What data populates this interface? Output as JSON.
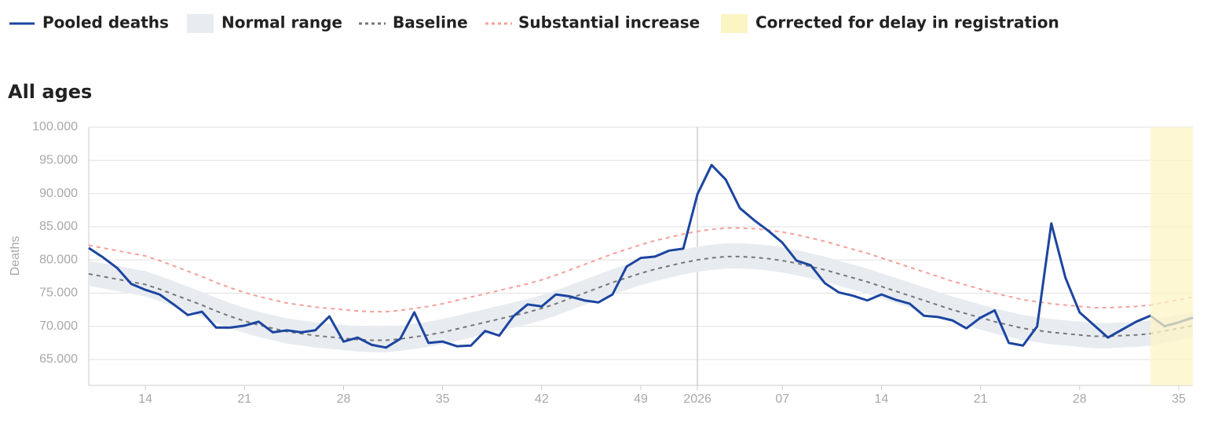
{
  "chart_data": {
    "type": "line",
    "title": "All ages",
    "y_label": "Deaths",
    "categories": [
      null,
      null,
      null,
      null,
      "14",
      null,
      null,
      null,
      null,
      null,
      null,
      "21",
      null,
      null,
      null,
      null,
      null,
      null,
      "28",
      null,
      null,
      null,
      null,
      null,
      null,
      "35",
      null,
      null,
      null,
      null,
      null,
      null,
      "42",
      null,
      null,
      null,
      null,
      null,
      null,
      "49",
      null,
      null,
      null,
      "2026",
      null,
      null,
      null,
      null,
      null,
      "07",
      null,
      null,
      null,
      null,
      null,
      null,
      "14",
      null,
      null,
      null,
      null,
      null,
      null,
      "21",
      null,
      null,
      null,
      null,
      null,
      null,
      "28",
      null,
      null,
      null,
      null,
      null,
      null,
      "35",
      null
    ],
    "series": [
      {
        "name": "Pooled deaths",
        "color": "#1c45a0",
        "dashed": false,
        "values": [
          81800,
          80400,
          78800,
          76400,
          75500,
          74800,
          73300,
          71700,
          72200,
          69800,
          69800,
          70100,
          70700,
          69100,
          69400,
          69100,
          69400,
          71500,
          67700,
          68300,
          67200,
          66800,
          68100,
          72100,
          67500,
          67700,
          67000,
          67100,
          69300,
          68600,
          71500,
          73300,
          73000,
          74800,
          74500,
          73900,
          73600,
          74800,
          79000,
          80300,
          80500,
          81400,
          81700,
          89900,
          94300,
          92100,
          87800,
          86000,
          84400,
          82600,
          79900,
          79200,
          76500,
          75100,
          74600,
          73900,
          74800,
          74000,
          73400,
          71600,
          71400,
          70900,
          69700,
          71300,
          72400,
          67500,
          67100,
          70000,
          85500,
          77300,
          72100,
          70200,
          68300,
          69500,
          70700,
          71600,
          70000,
          70600,
          71300
        ]
      },
      {
        "name": "Baseline",
        "color": "#777777",
        "dashed": true,
        "values": [
          77900,
          77500,
          77100,
          76700,
          76300,
          75600,
          74800,
          74000,
          73200,
          72300,
          71500,
          70800,
          70200,
          69700,
          69200,
          68900,
          68600,
          68400,
          68200,
          68000,
          67900,
          67900,
          68100,
          68400,
          68700,
          69100,
          69600,
          70100,
          70600,
          71100,
          71600,
          72100,
          72700,
          73400,
          74200,
          75000,
          75800,
          76600,
          77300,
          78000,
          78600,
          79100,
          79600,
          80000,
          80300,
          80500,
          80500,
          80400,
          80200,
          79900,
          79500,
          79000,
          78500,
          77900,
          77300,
          76700,
          76000,
          75300,
          74600,
          73900,
          73200,
          72500,
          71900,
          71300,
          70700,
          70200,
          69700,
          69400,
          69100,
          68900,
          68700,
          68500,
          68500,
          68600,
          68700,
          68900,
          69300,
          69700,
          70100
        ]
      },
      {
        "name": "Substantial increase",
        "color": "#f4a09a",
        "dashed": true,
        "values": [
          82200,
          81800,
          81400,
          81000,
          80600,
          79900,
          79100,
          78300,
          77500,
          76600,
          75800,
          75100,
          74500,
          74000,
          73500,
          73200,
          72900,
          72700,
          72500,
          72300,
          72200,
          72200,
          72400,
          72700,
          73000,
          73400,
          73900,
          74400,
          74900,
          75400,
          75900,
          76400,
          77000,
          77700,
          78500,
          79300,
          80100,
          80900,
          81600,
          82300,
          82900,
          83400,
          83900,
          84300,
          84600,
          84800,
          84800,
          84700,
          84500,
          84200,
          83800,
          83300,
          82800,
          82200,
          81600,
          81000,
          80300,
          79600,
          78900,
          78200,
          77500,
          76800,
          76200,
          75600,
          75000,
          74500,
          74000,
          73700,
          73400,
          73200,
          73000,
          72800,
          72800,
          72900,
          73000,
          73200,
          73600,
          74000,
          74400
        ]
      }
    ],
    "band": {
      "name": "Normal range",
      "color": "#e8ecf1",
      "upper": [
        79900,
        79500,
        79100,
        78700,
        78300,
        77600,
        76800,
        76000,
        75200,
        74300,
        73500,
        72800,
        72200,
        71700,
        71200,
        70900,
        70600,
        70400,
        70200,
        70000,
        69900,
        69900,
        70100,
        70400,
        70700,
        71100,
        71600,
        72100,
        72600,
        73100,
        73600,
        74100,
        74700,
        75400,
        76200,
        77000,
        77800,
        78600,
        79300,
        80000,
        80600,
        81100,
        81600,
        82000,
        82300,
        82500,
        82500,
        82400,
        82200,
        81900,
        81500,
        81000,
        80500,
        79900,
        79300,
        78700,
        78000,
        77300,
        76600,
        75900,
        75200,
        74500,
        73900,
        73300,
        72700,
        72200,
        71700,
        71400,
        71100,
        70900,
        70700,
        70500,
        70500,
        70600,
        70700,
        70900,
        71300,
        71700,
        72100
      ],
      "lower": [
        76100,
        75700,
        75300,
        74900,
        74500,
        73800,
        73000,
        72200,
        71400,
        70500,
        69700,
        69000,
        68400,
        67900,
        67400,
        67100,
        66800,
        66600,
        66400,
        66200,
        66100,
        66100,
        66300,
        66600,
        66900,
        67300,
        67800,
        68300,
        68800,
        69300,
        69800,
        70300,
        70900,
        71600,
        72400,
        73200,
        74000,
        74800,
        75500,
        76200,
        76800,
        77300,
        77800,
        78200,
        78500,
        78700,
        78700,
        78600,
        78400,
        78100,
        77700,
        77200,
        76700,
        76100,
        75500,
        74900,
        74200,
        73500,
        72800,
        72100,
        71400,
        70700,
        70100,
        69500,
        68900,
        68400,
        67900,
        67600,
        67300,
        67100,
        66900,
        66700,
        66700,
        66800,
        66900,
        67100,
        67500,
        67900,
        68300
      ]
    },
    "corrected": {
      "name": "Corrected for delay in registration",
      "color": "#fdf4c4",
      "from_index": 75
    },
    "ylim": [
      61100,
      100000
    ],
    "yticks": [
      {
        "value": 65000,
        "label": "65.000"
      },
      {
        "value": 70000,
        "label": "70.000"
      },
      {
        "value": 75000,
        "label": "75.000"
      },
      {
        "value": 80000,
        "label": "80.000"
      },
      {
        "value": 85000,
        "label": "85.000"
      },
      {
        "value": 90000,
        "label": "90.000"
      },
      {
        "value": 95000,
        "label": "95.000"
      },
      {
        "value": 100000,
        "label": "100.000"
      }
    ],
    "grid": true
  }
}
